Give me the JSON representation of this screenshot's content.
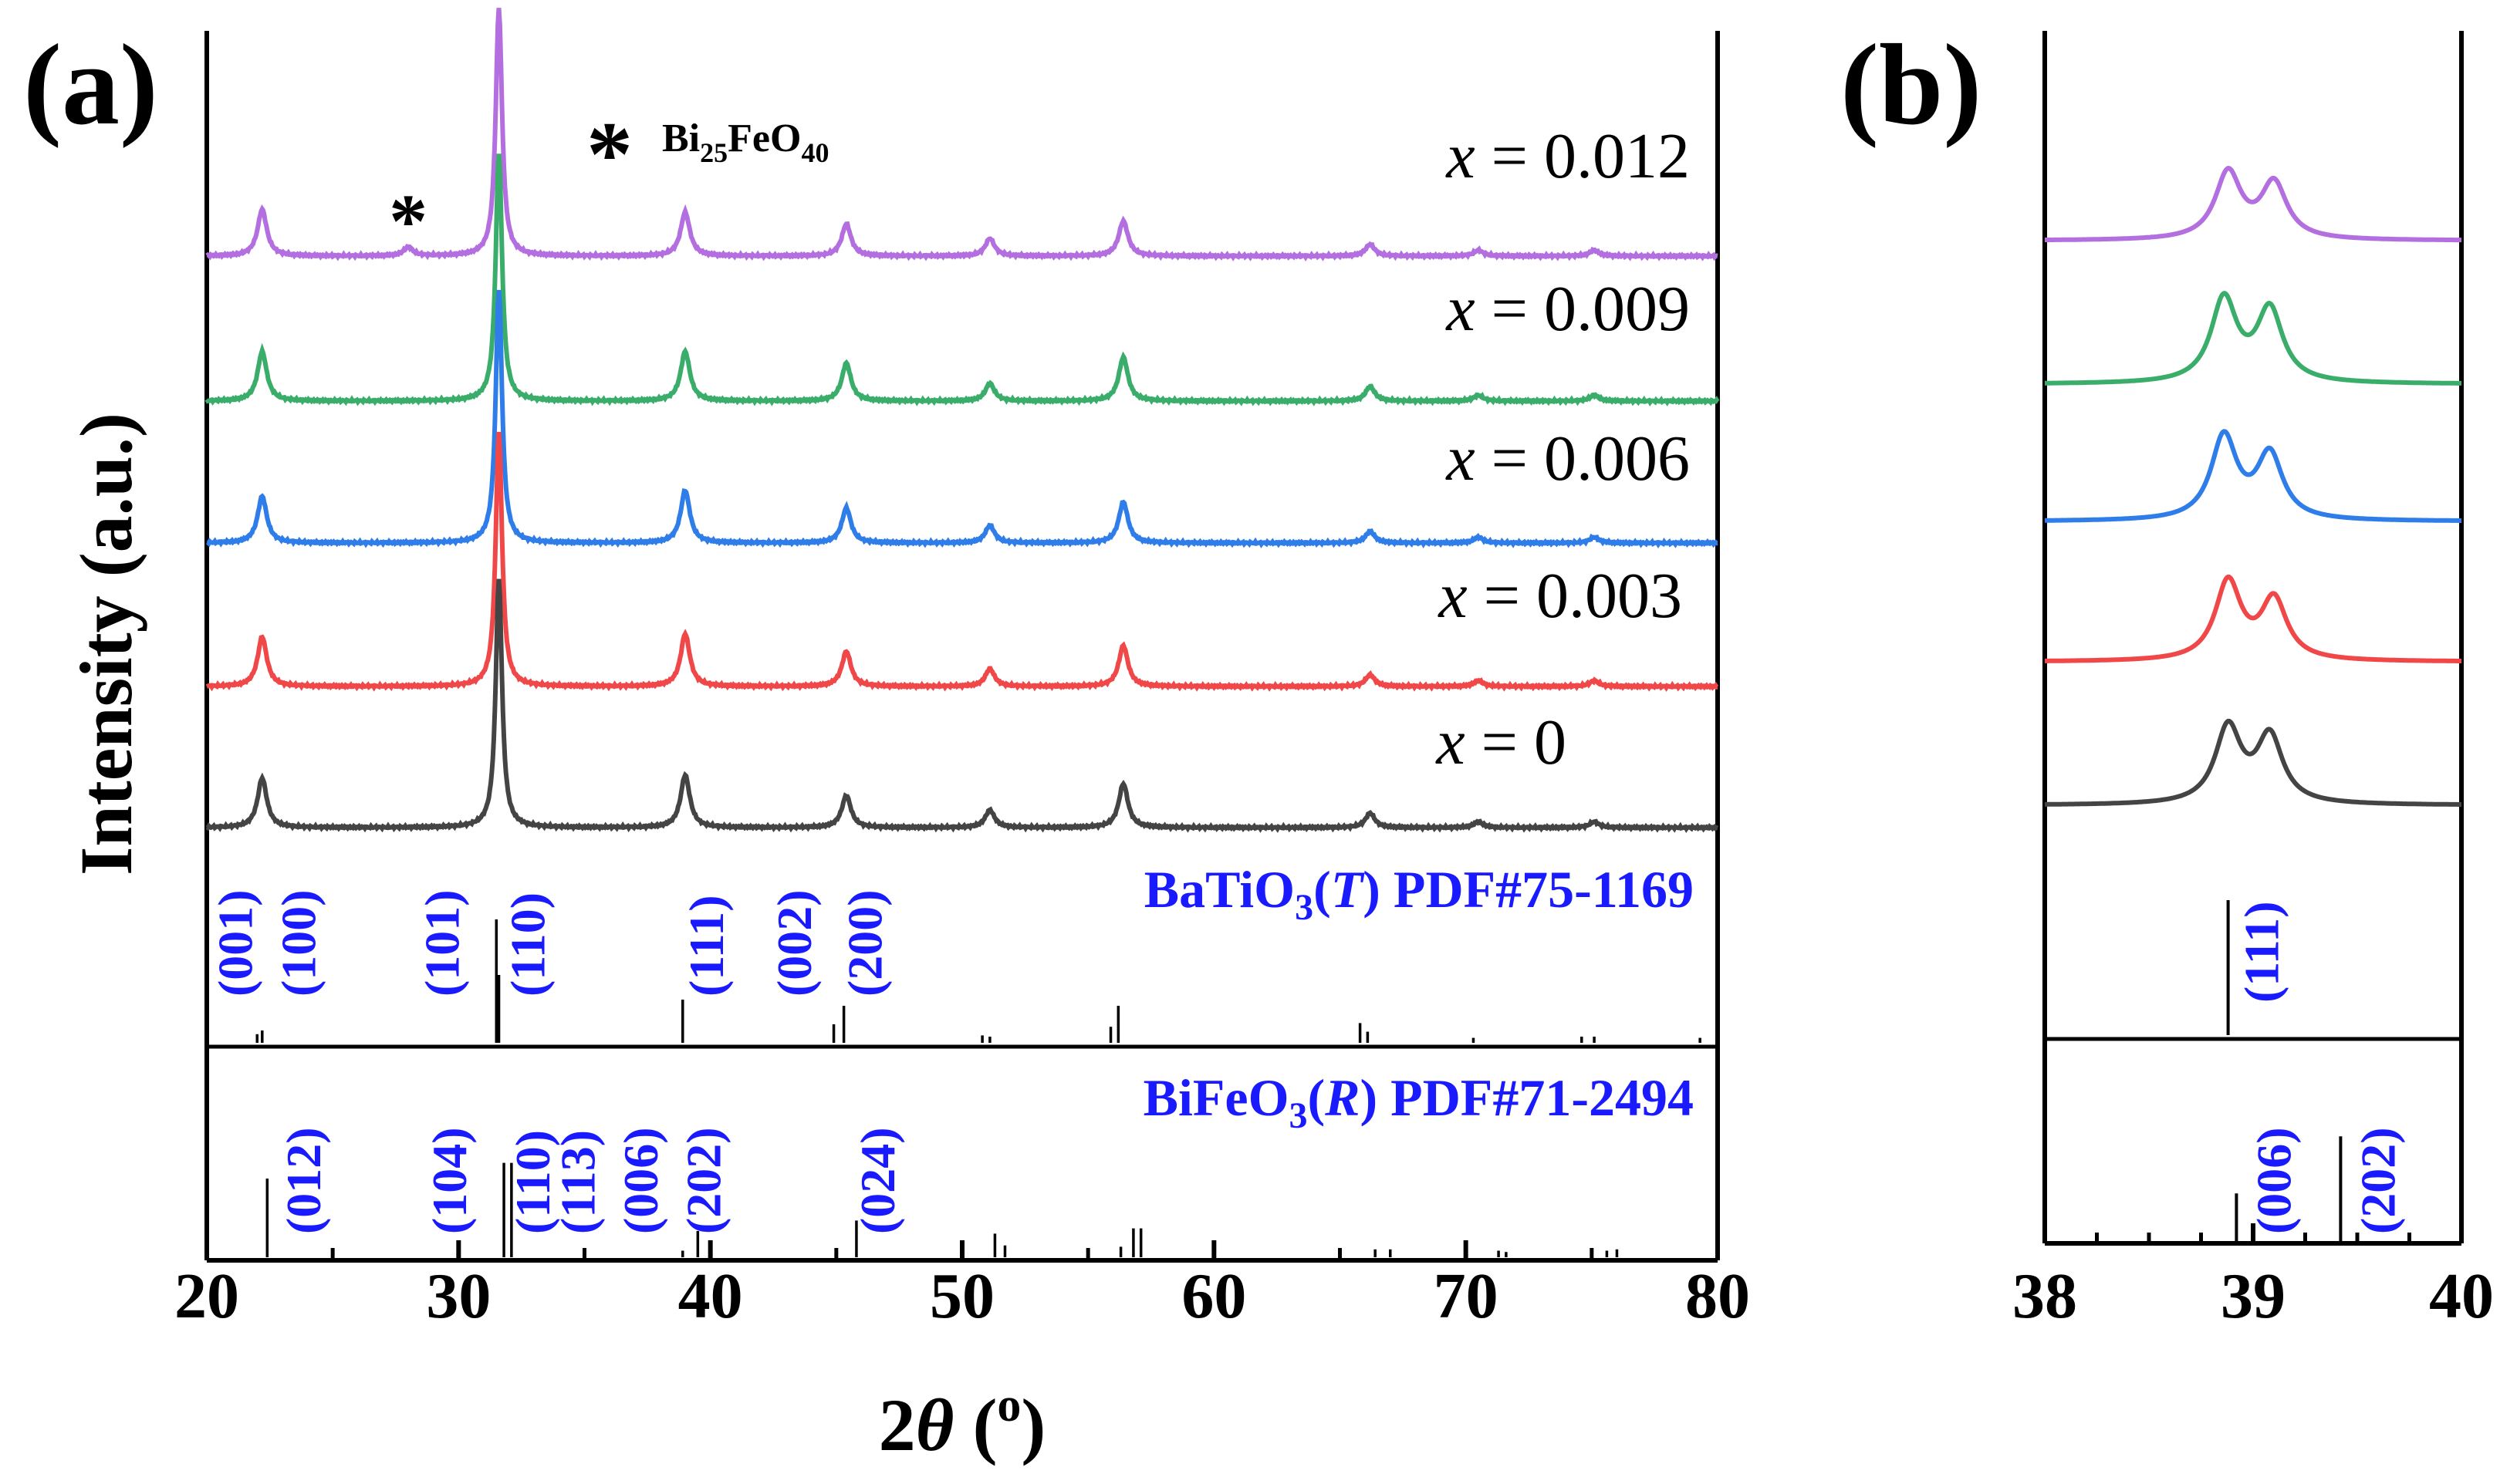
{
  "colors": {
    "purple": "#b36ee0",
    "green": "#3aad6a",
    "blue": "#2f7de8",
    "red": "#f04848",
    "gray": "#444444",
    "ref_text": "#1a1aff",
    "axis": "#000000"
  },
  "panel_a": {
    "label": "(a)"
  },
  "panel_b": {
    "label": "(b)"
  },
  "impurity_legend": {
    "symbol": "*",
    "prefix": "Bi",
    "sub1": "25",
    "mid": "FeO",
    "sub2": "40"
  },
  "chart_data": [
    {
      "type": "line",
      "panel": "a",
      "title": "",
      "xlabel": {
        "prefix": "2",
        "theta": "θ",
        "open": " (",
        "sup": "o",
        "close": ")"
      },
      "ylabel": "Intensity (a.u.)",
      "xlim": [
        20,
        80
      ],
      "xticks": [
        "20",
        "30",
        "40",
        "50",
        "60",
        "70",
        "80"
      ],
      "series": [
        {
          "name_prefix": "x",
          "name_value": " = 0.012",
          "color": "#b36ee0",
          "peaks": [
            [
              22.2,
              0.16
            ],
            [
              28.0,
              0.03
            ],
            [
              31.6,
              0.85
            ],
            [
              39.0,
              0.15
            ],
            [
              45.4,
              0.11
            ],
            [
              51.1,
              0.06
            ],
            [
              56.4,
              0.12
            ],
            [
              66.2,
              0.04
            ],
            [
              70.5,
              0.02
            ],
            [
              75.1,
              0.02
            ]
          ]
        },
        {
          "name_prefix": "x",
          "name_value": " = 0.009",
          "color": "#3aad6a",
          "peaks": [
            [
              22.2,
              0.17
            ],
            [
              31.6,
              0.85
            ],
            [
              39.0,
              0.17
            ],
            [
              45.4,
              0.13
            ],
            [
              51.1,
              0.06
            ],
            [
              56.4,
              0.15
            ],
            [
              66.2,
              0.05
            ],
            [
              70.5,
              0.02
            ],
            [
              75.1,
              0.02
            ]
          ]
        },
        {
          "name_prefix": "x",
          "name_value": " = 0.006",
          "color": "#2f7de8",
          "peaks": [
            [
              22.2,
              0.16
            ],
            [
              31.6,
              0.87
            ],
            [
              39.0,
              0.18
            ],
            [
              45.4,
              0.12
            ],
            [
              51.1,
              0.06
            ],
            [
              56.4,
              0.14
            ],
            [
              66.2,
              0.04
            ],
            [
              70.5,
              0.02
            ],
            [
              75.1,
              0.02
            ]
          ]
        },
        {
          "name_prefix": "x",
          "name_value": " = 0.003",
          "color": "#f04848",
          "peaks": [
            [
              22.2,
              0.17
            ],
            [
              31.6,
              0.87
            ],
            [
              39.0,
              0.18
            ],
            [
              45.4,
              0.12
            ],
            [
              51.1,
              0.06
            ],
            [
              56.4,
              0.14
            ],
            [
              66.2,
              0.04
            ],
            [
              70.5,
              0.02
            ],
            [
              75.1,
              0.02
            ]
          ]
        },
        {
          "name_prefix": "x",
          "name_value": " = 0",
          "color": "#444444",
          "peaks": [
            [
              22.2,
              0.17
            ],
            [
              31.6,
              0.85
            ],
            [
              39.0,
              0.18
            ],
            [
              45.4,
              0.11
            ],
            [
              51.1,
              0.06
            ],
            [
              56.4,
              0.15
            ],
            [
              66.2,
              0.05
            ],
            [
              70.5,
              0.02
            ],
            [
              75.1,
              0.02
            ]
          ]
        }
      ],
      "impurity_marker": {
        "symbol": "*",
        "x": 28.0
      },
      "references": [
        {
          "name_prefix": "BaTiO",
          "name_sub": "3",
          "name_open": "(",
          "name_phase": "T",
          "name_close": ") PDF#75-1169",
          "sticks": [
            [
              22.0,
              0.07
            ],
            [
              22.2,
              0.1
            ],
            [
              31.5,
              1.0
            ],
            [
              31.6,
              0.55
            ],
            [
              38.9,
              0.35
            ],
            [
              44.9,
              0.15
            ],
            [
              45.3,
              0.3
            ],
            [
              50.8,
              0.06
            ],
            [
              51.1,
              0.05
            ],
            [
              55.9,
              0.13
            ],
            [
              56.2,
              0.3
            ],
            [
              65.8,
              0.16
            ],
            [
              66.1,
              0.09
            ],
            [
              70.3,
              0.04
            ],
            [
              74.6,
              0.05
            ],
            [
              75.1,
              0.05
            ],
            [
              79.3,
              0.04
            ]
          ],
          "hkl": [
            {
              "label": "(001)",
              "x": 21.8
            },
            {
              "label": "(100)",
              "x": 24.3
            },
            {
              "label": "(101)",
              "x": 30.0
            },
            {
              "label": "(110)",
              "x": 33.4
            },
            {
              "label": "(111)",
              "x": 40.5
            },
            {
              "label": "(002)",
              "x": 44.0
            },
            {
              "label": "(200)",
              "x": 46.8
            }
          ]
        },
        {
          "name_prefix": "BiFeO",
          "name_sub": "3",
          "name_open": "(",
          "name_phase": "R",
          "name_close": ") PDF#71-2494",
          "sticks": [
            [
              22.4,
              0.6
            ],
            [
              31.8,
              0.72
            ],
            [
              32.1,
              0.72
            ],
            [
              38.9,
              0.05
            ],
            [
              39.5,
              0.2
            ],
            [
              45.8,
              0.28
            ],
            [
              51.3,
              0.18
            ],
            [
              51.7,
              0.09
            ],
            [
              56.3,
              0.08
            ],
            [
              56.8,
              0.22
            ],
            [
              57.1,
              0.22
            ],
            [
              66.4,
              0.06
            ],
            [
              67.0,
              0.06
            ],
            [
              71.3,
              0.05
            ],
            [
              71.6,
              0.04
            ],
            [
              75.6,
              0.05
            ],
            [
              76.0,
              0.06
            ]
          ],
          "hkl": [
            {
              "label": "(012)",
              "x": 24.5
            },
            {
              "label": "(104)",
              "x": 30.3
            },
            {
              "label": "(110)",
              "x": 33.6
            },
            {
              "label": "(113)",
              "x": 35.4
            },
            {
              "label": "(006)",
              "x": 37.9
            },
            {
              "label": "(202)",
              "x": 40.4
            },
            {
              "label": "(024)",
              "x": 47.3
            }
          ]
        }
      ]
    },
    {
      "type": "line",
      "panel": "b",
      "title": "",
      "xlim": [
        38,
        40
      ],
      "xticks": [
        "38",
        "39",
        "40"
      ],
      "series": [
        {
          "name": "x = 0.012",
          "color": "#b36ee0",
          "peaks": [
            [
              38.88,
              0.72
            ],
            [
              39.1,
              0.6
            ]
          ]
        },
        {
          "name": "x = 0.009",
          "color": "#3aad6a",
          "peaks": [
            [
              38.86,
              0.9
            ],
            [
              39.08,
              0.78
            ]
          ]
        },
        {
          "name": "x = 0.006",
          "color": "#2f7de8",
          "peaks": [
            [
              38.86,
              0.9
            ],
            [
              39.08,
              0.7
            ]
          ]
        },
        {
          "name": "x = 0.003",
          "color": "#f04848",
          "peaks": [
            [
              38.88,
              0.85
            ],
            [
              39.1,
              0.65
            ]
          ]
        },
        {
          "name": "x = 0",
          "color": "#444444",
          "peaks": [
            [
              38.88,
              0.82
            ],
            [
              39.08,
              0.72
            ]
          ]
        }
      ],
      "references": [
        {
          "sticks": [
            [
              38.88,
              1.0
            ]
          ],
          "hkl": [
            {
              "label": "(111)",
              "x": 39.12
            }
          ]
        },
        {
          "sticks": [
            [
              38.92,
              0.35
            ],
            [
              39.42,
              0.75
            ]
          ],
          "hkl": [
            {
              "label": "(006)",
              "x": 39.18
            },
            {
              "label": "(202)",
              "x": 39.68
            }
          ]
        }
      ]
    }
  ]
}
